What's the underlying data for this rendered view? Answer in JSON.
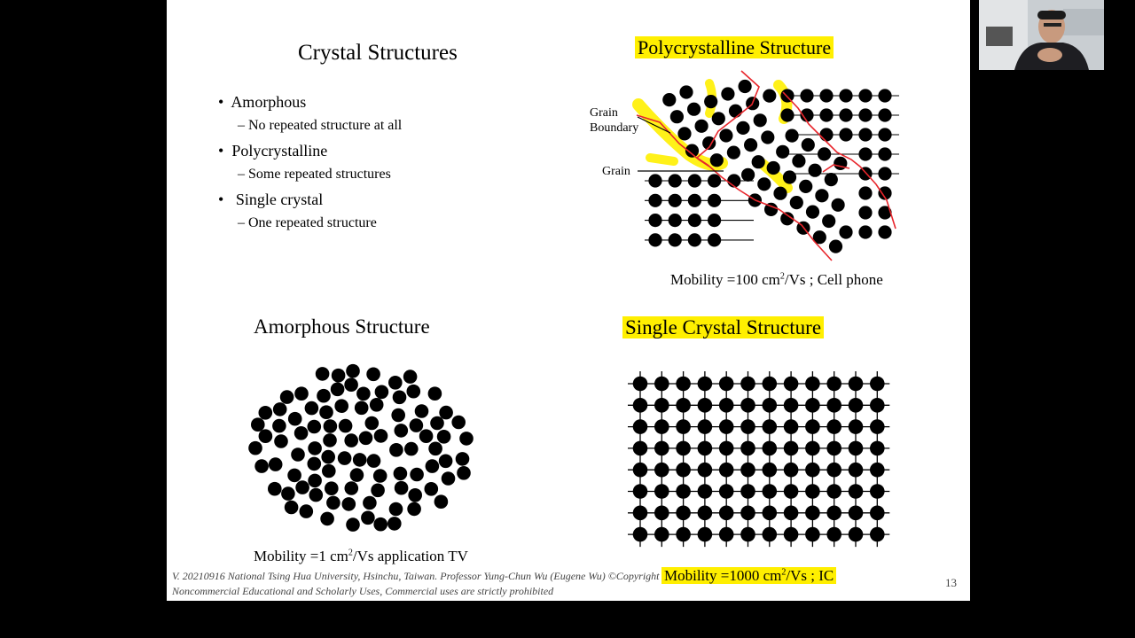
{
  "slide": {
    "page_number": "13",
    "main_title": "Crystal Structures",
    "bullets": [
      {
        "label": "Amorphous",
        "sub": "No repeated structure at all"
      },
      {
        "label": "Polycrystalline",
        "sub": "Some repeated structures"
      },
      {
        "label": "Single crystal",
        "sub": "One repeated structure"
      }
    ],
    "poly": {
      "title": "Polycrystalline Structure",
      "label_grain_boundary_1": "Grain",
      "label_grain_boundary_2": "Boundary",
      "label_grain": "Grain",
      "mobility_prefix": "Mobility =100 cm",
      "mobility_sup": "2",
      "mobility_suffix": "/Vs ; Cell phone"
    },
    "amorphous": {
      "title": "Amorphous Structure",
      "mobility_prefix": "Mobility =1 cm",
      "mobility_sup": "2",
      "mobility_suffix": "/Vs  application TV"
    },
    "single": {
      "title": "Single Crystal Structure",
      "mobility_prefix": "Mobility =1000 cm",
      "mobility_sup": "2",
      "mobility_suffix": "/Vs ; IC"
    },
    "footer": {
      "line1": "V. 20210916 National Tsing Hua University, Hsinchu, Taiwan. Professor Yung-Chun Wu (Eugene Wu) ©Copyright",
      "line2": "Noncommercial Educational and Scholarly Uses, Commercial uses are strictly prohibited"
    },
    "colors": {
      "highlight": "#ffef00",
      "boundary": "#e8262c"
    }
  }
}
